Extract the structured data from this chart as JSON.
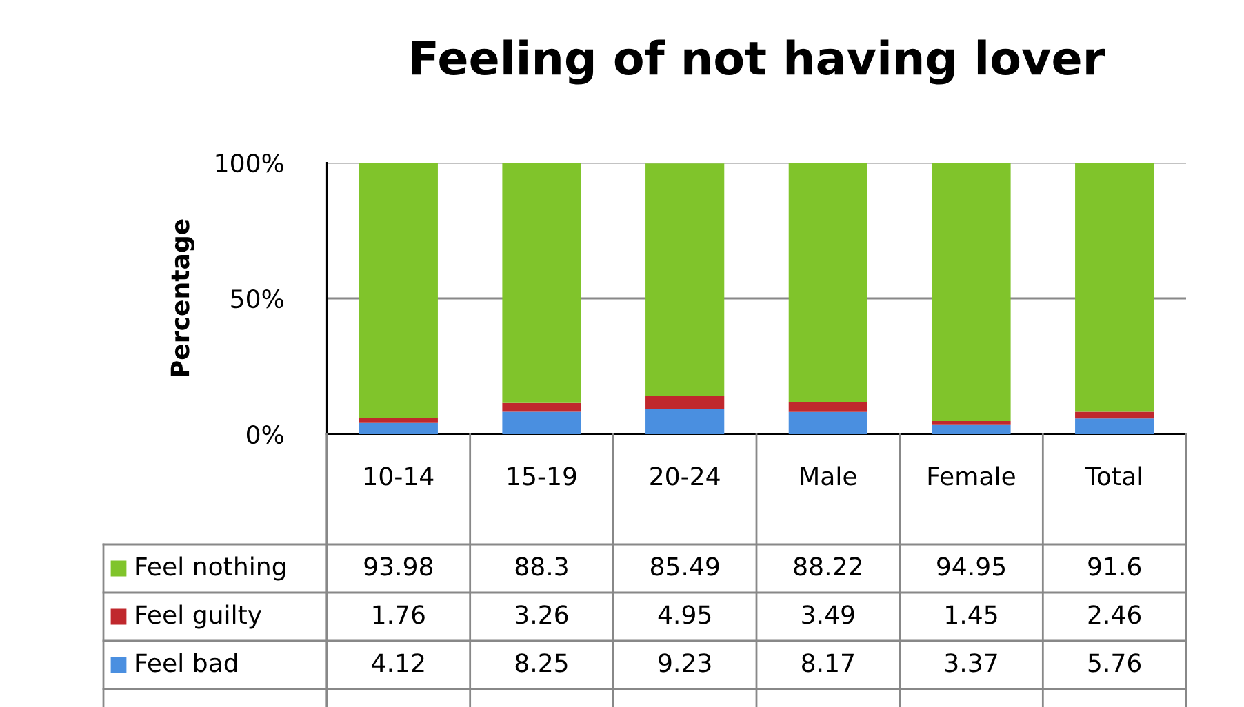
{
  "chart_data": {
    "type": "bar",
    "title": "Feeling of not having lover",
    "ylabel": "Percentage",
    "categories": [
      "10-14",
      "15-19",
      "20-24",
      "Male",
      "Female",
      "Total"
    ],
    "stacked": true,
    "series": [
      {
        "name": "Feel bad",
        "color": "#4a8fe0",
        "values": [
          4.12,
          8.25,
          9.23,
          8.17,
          3.37,
          5.76
        ]
      },
      {
        "name": "Feel guilty",
        "color": "#c0282d",
        "values": [
          1.76,
          3.26,
          4.95,
          3.49,
          1.45,
          2.46
        ]
      },
      {
        "name": "Feel nothing",
        "color": "#80c42b",
        "values": [
          93.98,
          88.3,
          85.49,
          88.22,
          94.95,
          91.6
        ]
      }
    ],
    "ylim": [
      0,
      100
    ],
    "yticks": [
      {
        "value": 0,
        "label": "0%"
      },
      {
        "value": 50,
        "label": "50%"
      },
      {
        "value": 100,
        "label": "100%"
      }
    ],
    "grid": "y",
    "data_labels": true,
    "legend": "bottom"
  }
}
